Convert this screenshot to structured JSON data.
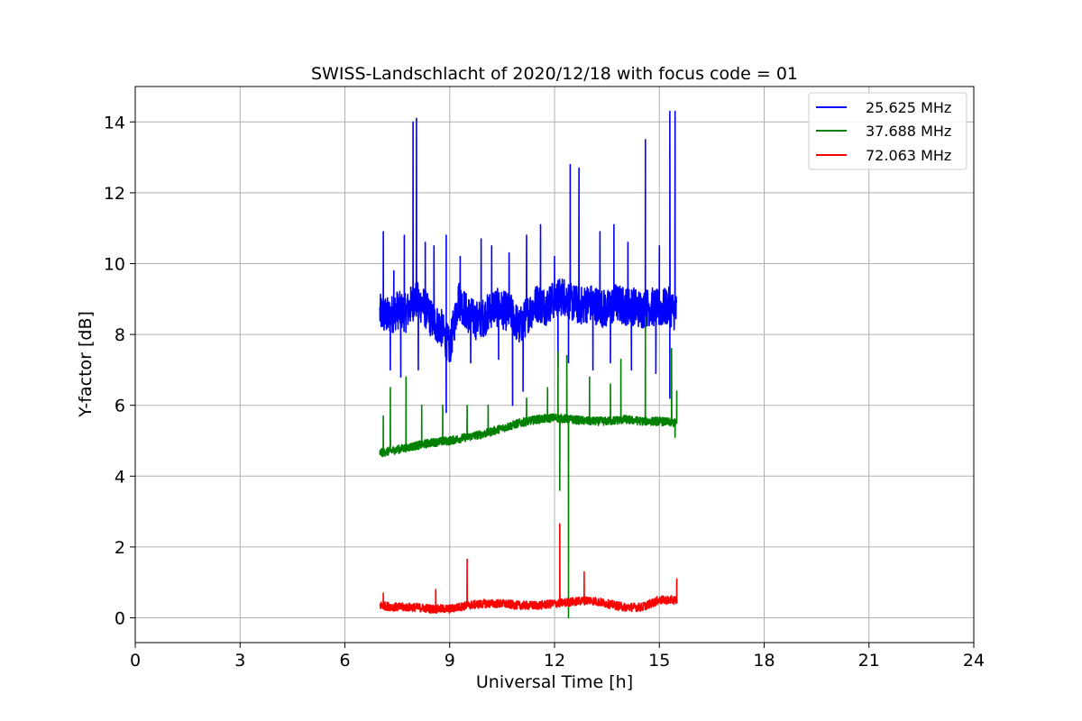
{
  "chart_data": {
    "type": "line",
    "title": "SWISS-Landschlacht of 2020/12/18 with focus code = 01",
    "xlabel": "Universal Time [h]",
    "ylabel": "Y-factor [dB]",
    "xlim": [
      0,
      24
    ],
    "ylim": [
      -0.7,
      15
    ],
    "xticks": [
      0,
      3,
      6,
      9,
      12,
      15,
      18,
      21,
      24
    ],
    "yticks": [
      0,
      2,
      4,
      6,
      8,
      10,
      12,
      14
    ],
    "xtick_labels": [
      "0",
      "3",
      "6",
      "9",
      "12",
      "15",
      "18",
      "21",
      "24"
    ],
    "ytick_labels": [
      "0",
      "2",
      "4",
      "6",
      "8",
      "10",
      "12",
      "14"
    ],
    "grid": true,
    "legend_position": "upper-right",
    "series": [
      {
        "name": "25.625 MHz",
        "color": "#0000ff",
        "x": [
          7.0,
          7.25,
          7.5,
          7.75,
          8.0,
          8.25,
          8.5,
          8.75,
          9.0,
          9.25,
          9.5,
          9.75,
          10.0,
          10.25,
          10.5,
          10.75,
          11.0,
          11.25,
          11.5,
          11.75,
          12.0,
          12.25,
          12.5,
          12.75,
          13.0,
          13.25,
          13.5,
          13.75,
          14.0,
          14.25,
          14.5,
          14.75,
          15.0,
          15.25,
          15.5
        ],
        "values": [
          8.6,
          8.5,
          8.7,
          8.6,
          9.0,
          8.8,
          8.4,
          8.2,
          7.6,
          9.0,
          8.6,
          8.4,
          8.5,
          8.8,
          8.7,
          8.6,
          8.2,
          8.6,
          8.9,
          8.8,
          9.0,
          9.1,
          8.9,
          8.8,
          8.9,
          8.8,
          8.7,
          8.9,
          8.8,
          8.8,
          8.7,
          8.8,
          8.7,
          8.8,
          8.6
        ],
        "spikes": [
          [
            7.1,
            10.9
          ],
          [
            7.4,
            9.8
          ],
          [
            7.7,
            10.8
          ],
          [
            7.95,
            14.0
          ],
          [
            8.05,
            14.1
          ],
          [
            8.3,
            10.6
          ],
          [
            8.55,
            10.5
          ],
          [
            8.9,
            10.8
          ],
          [
            9.3,
            10.2
          ],
          [
            9.9,
            10.7
          ],
          [
            10.2,
            10.5
          ],
          [
            10.7,
            10.3
          ],
          [
            11.2,
            10.8
          ],
          [
            11.6,
            11.1
          ],
          [
            12.0,
            10.2
          ],
          [
            12.45,
            12.8
          ],
          [
            12.7,
            12.7
          ],
          [
            13.3,
            10.9
          ],
          [
            13.7,
            11.1
          ],
          [
            14.1,
            10.6
          ],
          [
            14.6,
            13.5
          ],
          [
            15.0,
            10.5
          ],
          [
            15.3,
            14.3
          ],
          [
            15.45,
            14.3
          ]
        ],
        "dips": [
          [
            7.3,
            7.0
          ],
          [
            7.6,
            6.8
          ],
          [
            8.1,
            7.0
          ],
          [
            8.9,
            5.8
          ],
          [
            9.6,
            7.2
          ],
          [
            10.4,
            7.3
          ],
          [
            10.8,
            6.0
          ],
          [
            11.1,
            6.4
          ],
          [
            12.1,
            7.1
          ],
          [
            12.4,
            7.2
          ],
          [
            13.1,
            7.0
          ],
          [
            13.6,
            7.2
          ],
          [
            14.2,
            7.0
          ],
          [
            14.9,
            6.9
          ],
          [
            15.3,
            6.2
          ]
        ]
      },
      {
        "name": "37.688 MHz",
        "color": "#008000",
        "x": [
          7.0,
          7.5,
          8.0,
          8.5,
          9.0,
          9.5,
          10.0,
          10.5,
          11.0,
          11.5,
          12.0,
          12.5,
          13.0,
          13.5,
          14.0,
          14.5,
          15.0,
          15.5
        ],
        "values": [
          4.65,
          4.75,
          4.85,
          4.95,
          5.0,
          5.1,
          5.2,
          5.35,
          5.5,
          5.6,
          5.65,
          5.6,
          5.55,
          5.55,
          5.6,
          5.55,
          5.55,
          5.5
        ],
        "spikes": [
          [
            7.1,
            5.7
          ],
          [
            7.3,
            6.5
          ],
          [
            7.75,
            6.8
          ],
          [
            8.2,
            6.0
          ],
          [
            8.8,
            6.0
          ],
          [
            9.5,
            6.0
          ],
          [
            10.1,
            6.0
          ],
          [
            11.2,
            6.2
          ],
          [
            11.8,
            6.5
          ],
          [
            12.1,
            7.5
          ],
          [
            12.35,
            7.4
          ],
          [
            13.0,
            6.8
          ],
          [
            13.6,
            6.6
          ],
          [
            13.9,
            7.3
          ],
          [
            14.6,
            8.5
          ],
          [
            15.35,
            7.6
          ],
          [
            15.5,
            6.4
          ]
        ],
        "dips": [
          [
            12.15,
            3.6
          ],
          [
            12.4,
            0.0
          ],
          [
            15.45,
            5.1
          ]
        ]
      },
      {
        "name": "72.063 MHz",
        "color": "#ff0000",
        "x": [
          7.0,
          7.5,
          8.0,
          8.5,
          9.0,
          9.5,
          10.0,
          10.5,
          11.0,
          11.5,
          12.0,
          12.5,
          13.0,
          13.5,
          14.0,
          14.5,
          15.0,
          15.5
        ],
        "values": [
          0.35,
          0.3,
          0.3,
          0.25,
          0.25,
          0.35,
          0.4,
          0.4,
          0.35,
          0.35,
          0.4,
          0.45,
          0.5,
          0.4,
          0.3,
          0.3,
          0.5,
          0.5
        ],
        "spikes": [
          [
            7.1,
            0.7
          ],
          [
            8.6,
            0.8
          ],
          [
            9.5,
            1.65
          ],
          [
            12.15,
            2.65
          ],
          [
            12.85,
            1.3
          ],
          [
            15.5,
            1.1
          ]
        ],
        "dips": []
      }
    ]
  }
}
